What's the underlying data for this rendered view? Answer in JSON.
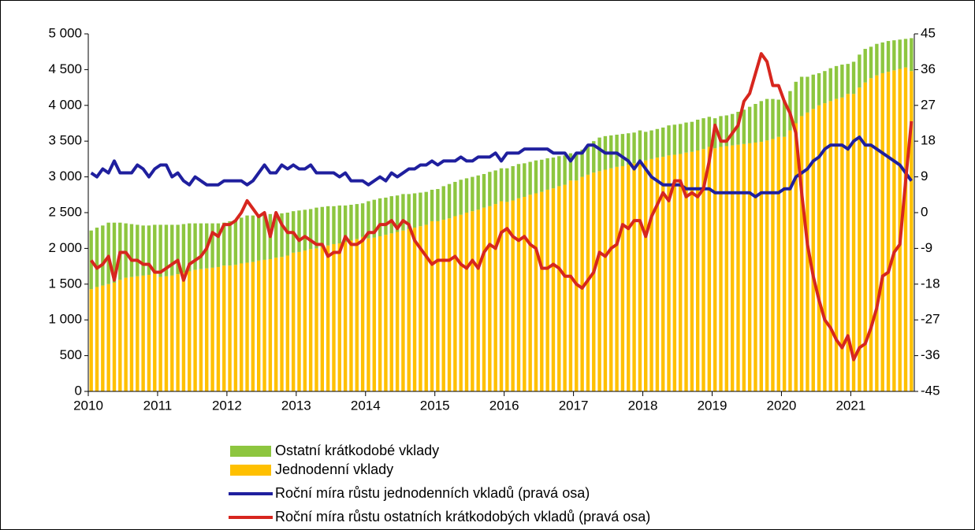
{
  "chart_data": {
    "type": "bar",
    "categories": [
      "2010",
      null,
      null,
      null,
      null,
      null,
      null,
      null,
      null,
      null,
      null,
      null,
      "2011",
      null,
      null,
      null,
      null,
      null,
      null,
      null,
      null,
      null,
      null,
      null,
      "2012",
      null,
      null,
      null,
      null,
      null,
      null,
      null,
      null,
      null,
      null,
      null,
      "2013",
      null,
      null,
      null,
      null,
      null,
      null,
      null,
      null,
      null,
      null,
      null,
      "2014",
      null,
      null,
      null,
      null,
      null,
      null,
      null,
      null,
      null,
      null,
      null,
      "2015",
      null,
      null,
      null,
      null,
      null,
      null,
      null,
      null,
      null,
      null,
      null,
      "2016",
      null,
      null,
      null,
      null,
      null,
      null,
      null,
      null,
      null,
      null,
      null,
      "2017",
      null,
      null,
      null,
      null,
      null,
      null,
      null,
      null,
      null,
      null,
      null,
      "2018",
      null,
      null,
      null,
      null,
      null,
      null,
      null,
      null,
      null,
      null,
      null,
      "2019",
      null,
      null,
      null,
      null,
      null,
      null,
      null,
      null,
      null,
      null,
      null,
      "2020",
      null,
      null,
      null,
      null,
      null,
      null,
      null,
      null,
      null,
      null,
      null,
      "2021",
      null,
      null,
      null,
      null,
      null,
      null,
      null,
      null,
      null,
      null
    ],
    "series": [
      {
        "name": "Ostatní krátkodobé vklady",
        "type": "bar",
        "color": "#8dc63f",
        "values": [
          820,
          830,
          840,
          860,
          840,
          800,
          760,
          740,
          720,
          700,
          690,
          680,
          730,
          720,
          710,
          690,
          680,
          670,
          650,
          640,
          630,
          620,
          610,
          600,
          620,
          630,
          640,
          660,
          650,
          640,
          640,
          630,
          620,
          610,
          600,
          580,
          580,
          570,
          560,
          570,
          560,
          550,
          530,
          530,
          510,
          500,
          490,
          470,
          520,
          530,
          530,
          520,
          520,
          510,
          510,
          490,
          480,
          470,
          460,
          440,
          450,
          470,
          480,
          480,
          490,
          480,
          480,
          480,
          470,
          480,
          470,
          460,
          470,
          480,
          480,
          470,
          460,
          460,
          450,
          440,
          430,
          420,
          410,
          380,
          360,
          380,
          400,
          440,
          470,
          470,
          460,
          450,
          450,
          440,
          430,
          420,
          400,
          400,
          400,
          410,
          420,
          420,
          420,
          420,
          420,
          430,
          430,
          420,
          420,
          430,
          430,
          440,
          460,
          480,
          510,
          540,
          570,
          580,
          560,
          520,
          510,
          550,
          580,
          550,
          500,
          480,
          450,
          450,
          460,
          460,
          460,
          420,
          450,
          460,
          470,
          440,
          440,
          430,
          430,
          420,
          410,
          400,
          460
        ]
      },
      {
        "name": "Jednodenní vklady",
        "type": "bar",
        "color": "#ffc000",
        "values": [
          1430,
          1460,
          1480,
          1500,
          1520,
          1560,
          1590,
          1600,
          1610,
          1620,
          1630,
          1650,
          1600,
          1610,
          1620,
          1640,
          1660,
          1680,
          1700,
          1710,
          1720,
          1730,
          1740,
          1760,
          1760,
          1770,
          1790,
          1800,
          1810,
          1830,
          1840,
          1850,
          1870,
          1880,
          1900,
          1940,
          1950,
          1970,
          1990,
          2000,
          2020,
          2040,
          2060,
          2070,
          2090,
          2110,
          2130,
          2160,
          2140,
          2150,
          2170,
          2190,
          2210,
          2230,
          2250,
          2270,
          2290,
          2310,
          2330,
          2380,
          2380,
          2400,
          2420,
          2450,
          2470,
          2500,
          2520,
          2540,
          2570,
          2590,
          2620,
          2660,
          2650,
          2670,
          2700,
          2720,
          2750,
          2770,
          2790,
          2820,
          2840,
          2870,
          2890,
          2950,
          2950,
          3000,
          3030,
          3060,
          3080,
          3100,
          3120,
          3140,
          3150,
          3170,
          3190,
          3230,
          3230,
          3250,
          3270,
          3280,
          3300,
          3310,
          3320,
          3340,
          3350,
          3370,
          3390,
          3420,
          3400,
          3420,
          3430,
          3440,
          3450,
          3460,
          3470,
          3480,
          3490,
          3510,
          3530,
          3560,
          3560,
          3650,
          3750,
          3850,
          3900,
          3950,
          4000,
          4030,
          4060,
          4090,
          4110,
          4160,
          4160,
          4250,
          4320,
          4380,
          4420,
          4450,
          4470,
          4490,
          4510,
          4530,
          4480
        ]
      },
      {
        "name": "Roční míra růstu jednodenních vkladů (pravá osa)",
        "type": "line",
        "axis": "y2",
        "color": "#1f1f9e",
        "values": [
          10,
          9,
          11,
          10,
          13,
          10,
          10,
          10,
          12,
          11,
          9,
          11,
          12,
          12,
          9,
          10,
          8,
          7,
          9,
          8,
          7,
          7,
          7,
          8,
          8,
          8,
          8,
          7,
          8,
          10,
          12,
          10,
          10,
          12,
          11,
          12,
          11,
          11,
          12,
          10,
          10,
          10,
          10,
          9,
          10,
          8,
          8,
          8,
          7,
          8,
          9,
          8,
          10,
          9,
          10,
          11,
          11,
          12,
          12,
          13,
          12,
          13,
          13,
          13,
          14,
          13,
          13,
          14,
          14,
          14,
          15,
          13,
          15,
          15,
          15,
          16,
          16,
          16,
          16,
          16,
          15,
          15,
          15,
          13,
          15,
          15,
          17,
          17,
          16,
          15,
          15,
          15,
          14,
          13,
          11,
          13,
          11,
          9,
          8,
          7,
          7,
          7,
          7,
          6,
          6,
          6,
          6,
          6,
          5,
          5,
          5,
          5,
          5,
          5,
          5,
          4,
          5,
          5,
          5,
          5,
          6,
          6,
          9,
          10,
          11,
          13,
          14,
          16,
          17,
          17,
          17,
          16,
          18,
          19,
          17,
          17,
          16,
          15,
          14,
          13,
          12,
          10,
          8
        ]
      },
      {
        "name": "Roční míra růstu ostatních krátkodobých vkladů (pravá osa)",
        "type": "line",
        "axis": "y2",
        "color": "#d7261e",
        "values": [
          -12,
          -14,
          -13,
          -11,
          -17,
          -10,
          -10,
          -12,
          -12,
          -13,
          -13,
          -15,
          -15,
          -14,
          -13,
          -12,
          -17,
          -13,
          -12,
          -11,
          -9,
          -5,
          -6,
          -3,
          -3,
          -2,
          0,
          3,
          1,
          -1,
          0,
          -6,
          0,
          -3,
          -5,
          -5,
          -7,
          -6,
          -7,
          -8,
          -8,
          -11,
          -10,
          -10,
          -6,
          -8,
          -8,
          -7,
          -5,
          -5,
          -3,
          -3,
          -2,
          -4,
          -2,
          -3,
          -7,
          -9,
          -11,
          -13,
          -12,
          -12,
          -12,
          -11,
          -13,
          -14,
          -12,
          -14,
          -10,
          -8,
          -9,
          -5,
          -4,
          -6,
          -7,
          -6,
          -8,
          -9,
          -14,
          -14,
          -13,
          -14,
          -16,
          -16,
          -18,
          -19,
          -17,
          -15,
          -10,
          -11,
          -9,
          -8,
          -3,
          -4,
          -2,
          -2,
          -6,
          -1,
          2,
          5,
          3,
          8,
          8,
          4,
          5,
          4,
          6,
          13,
          22,
          18,
          18,
          20,
          22,
          28,
          30,
          35,
          40,
          38,
          32,
          32,
          28,
          25,
          20,
          5,
          -8,
          -16,
          -22,
          -27,
          -29,
          -32,
          -34,
          -31,
          -37,
          -34,
          -33,
          -29,
          -24,
          -16,
          -15,
          -10,
          -8,
          8,
          23
        ]
      }
    ],
    "ylim": [
      0,
      5000
    ],
    "yticks": [
      0,
      500,
      {
        "value": 1000,
        "label": "1 000"
      },
      {
        "value": 1500,
        "label": "1 500"
      },
      {
        "value": 2000,
        "label": "2 000"
      },
      {
        "value": 2500,
        "label": "2 500"
      },
      {
        "value": 3000,
        "label": "3 000"
      },
      {
        "value": 3500,
        "label": "3 500"
      },
      {
        "value": 4000,
        "label": "4 000"
      },
      {
        "value": 4500,
        "label": "4 500"
      },
      {
        "value": 5000,
        "label": "5 000"
      }
    ],
    "y2lim": [
      -45,
      45
    ],
    "y2ticks": [
      -45,
      -36,
      -27,
      -18,
      -9,
      0,
      9,
      18,
      27,
      36,
      45
    ],
    "grid": false
  }
}
